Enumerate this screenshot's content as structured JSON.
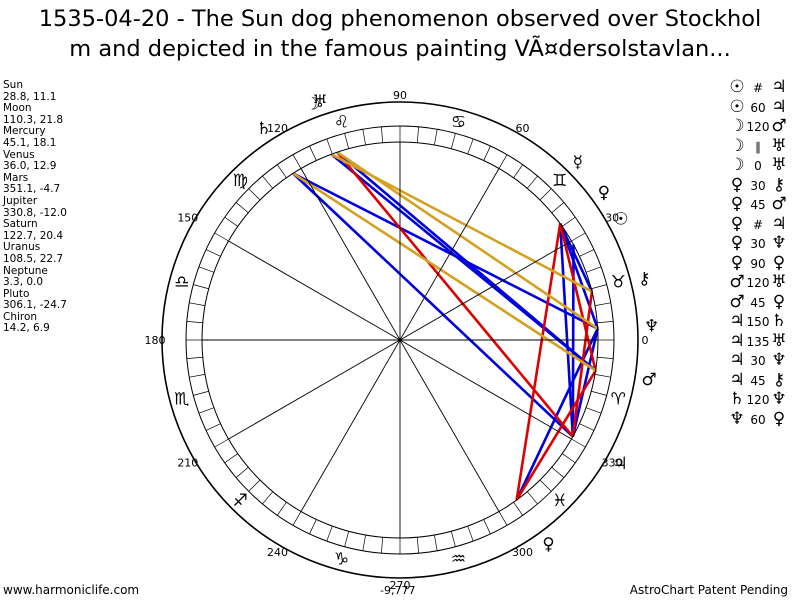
{
  "title": {
    "line1": "1535-04-20 - The Sun dog phenomenon observed over Stockhol",
    "line2": "m and depicted in the famous painting VÃ¤dersolstavlan..."
  },
  "positions": [
    {
      "name": "Sun",
      "coords": "28.8, 11.1"
    },
    {
      "name": "Moon",
      "coords": "110.3, 21.8"
    },
    {
      "name": "Mercury",
      "coords": "45.1, 18.1"
    },
    {
      "name": "Venus",
      "coords": "36.0, 12.9"
    },
    {
      "name": "Mars",
      "coords": "351.1, -4.7"
    },
    {
      "name": "Jupiter",
      "coords": "330.8, -12.0"
    },
    {
      "name": "Saturn",
      "coords": "122.7, 20.4"
    },
    {
      "name": "Uranus",
      "coords": "108.5, 22.7"
    },
    {
      "name": "Neptune",
      "coords": "3.3, 0.0"
    },
    {
      "name": "Pluto",
      "coords": "306.1, -24.7"
    },
    {
      "name": "Chiron",
      "coords": "14.2, 6.9"
    }
  ],
  "aspects": [
    {
      "p1": "☉",
      "aspect": "#",
      "p2": "♃"
    },
    {
      "p1": "☉",
      "aspect": "60",
      "p2": "♃"
    },
    {
      "p1": "☽",
      "aspect": "120",
      "p2": "♂"
    },
    {
      "p1": "☽",
      "aspect": "∥",
      "p2": "♅"
    },
    {
      "p1": "☽",
      "aspect": "0",
      "p2": "♅"
    },
    {
      "p1": "♀",
      "aspect": "30",
      "p2": "⚷"
    },
    {
      "p1": "♀",
      "aspect": "45",
      "p2": "♂"
    },
    {
      "p1": "♀",
      "aspect": "#",
      "p2": "♃"
    },
    {
      "p1": "♀",
      "aspect": "30",
      "p2": "♆"
    },
    {
      "p1": "♀",
      "aspect": "90",
      "p2": "♀"
    },
    {
      "p1": "♂",
      "aspect": "120",
      "p2": "♅"
    },
    {
      "p1": "♂",
      "aspect": "45",
      "p2": "♀"
    },
    {
      "p1": "♃",
      "aspect": "150",
      "p2": "♄"
    },
    {
      "p1": "♃",
      "aspect": "135",
      "p2": "♅"
    },
    {
      "p1": "♃",
      "aspect": "30",
      "p2": "♆"
    },
    {
      "p1": "♃",
      "aspect": "45",
      "p2": "⚷"
    },
    {
      "p1": "♄",
      "aspect": "120",
      "p2": "♆"
    },
    {
      "p1": "♆",
      "aspect": "60",
      "p2": "♀"
    }
  ],
  "wheel": {
    "cusp_labels": [
      "0",
      "30",
      "60",
      "90",
      "120",
      "150",
      "180",
      "210",
      "240",
      "270",
      "300",
      "330"
    ],
    "bottom_readout": "-9,777",
    "sign_glyphs": [
      "♉",
      "♊",
      "♋",
      "♌",
      "♍",
      "♎",
      "♏",
      "♐",
      "♑",
      "♒",
      "♓",
      "♈"
    ],
    "planets": [
      {
        "glyph": "☉",
        "deg": 28.8
      },
      {
        "glyph": "☽",
        "deg": 110.3
      },
      {
        "glyph": "☿",
        "deg": 45.1
      },
      {
        "glyph": "♀",
        "deg": 36.0
      },
      {
        "glyph": "♂",
        "deg": 351.1
      },
      {
        "glyph": "♃",
        "deg": 330.8
      },
      {
        "glyph": "♄",
        "deg": 122.7
      },
      {
        "glyph": "♅",
        "deg": 108.5
      },
      {
        "glyph": "♆",
        "deg": 3.3
      },
      {
        "glyph": "♀",
        "deg": 306.1
      },
      {
        "glyph": "⚷",
        "deg": 14.2
      }
    ],
    "colors": {
      "trine_sextile": "#0000dd",
      "square_opposition": "#dd0000",
      "minor": "#d4a020"
    }
  },
  "footer": {
    "site": "www.harmoniclife.com",
    "patent": "AstroChart Patent Pending"
  }
}
